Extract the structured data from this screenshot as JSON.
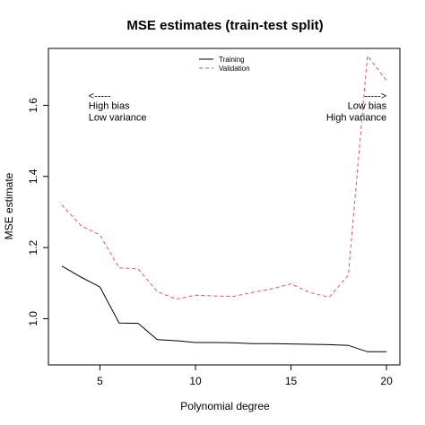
{
  "chart_data": {
    "type": "line",
    "title": "MSE estimates (train-test split)",
    "xlabel": "Polynomial degree",
    "ylabel": "MSE estimate",
    "xlim": [
      2.3,
      20.7
    ],
    "ylim": [
      0.87,
      1.76
    ],
    "xticks": [
      5,
      10,
      15,
      20
    ],
    "yticks": [
      1.0,
      1.2,
      1.4,
      1.6
    ],
    "ytick_labels": [
      "1.0",
      "1.2",
      "1.4",
      "1.6"
    ],
    "grid": false,
    "legend_position": "top-center",
    "x": [
      3,
      4,
      5,
      6,
      7,
      8,
      9,
      10,
      11,
      12,
      13,
      14,
      15,
      16,
      17,
      18,
      19,
      20
    ],
    "series": [
      {
        "name": "Training",
        "color": "#000000",
        "dash": "solid",
        "values": [
          1.148,
          1.117,
          1.089,
          0.988,
          0.987,
          0.941,
          0.938,
          0.933,
          0.933,
          0.932,
          0.93,
          0.93,
          0.929,
          0.928,
          0.927,
          0.925,
          0.907,
          0.907
        ]
      },
      {
        "name": "Validation",
        "color": "#DF536B",
        "dash": "dashed",
        "values": [
          1.32,
          1.262,
          1.235,
          1.143,
          1.14,
          1.076,
          1.055,
          1.066,
          1.064,
          1.063,
          1.074,
          1.084,
          1.098,
          1.073,
          1.061,
          1.122,
          1.739,
          1.67
        ]
      }
    ],
    "annotations": [
      {
        "id": "left",
        "arrow": "<-----",
        "line1": "High bias",
        "line2": "Low variance",
        "anchor": "start",
        "x": 4.4,
        "y_arrow": 1.617,
        "y1": 1.59,
        "y2": 1.557
      },
      {
        "id": "right",
        "arrow": "----->",
        "line1": "Low bias",
        "line2": "High variance",
        "anchor": "end",
        "x": 20.0,
        "y_arrow": 1.617,
        "y1": 1.59,
        "y2": 1.557
      }
    ]
  }
}
